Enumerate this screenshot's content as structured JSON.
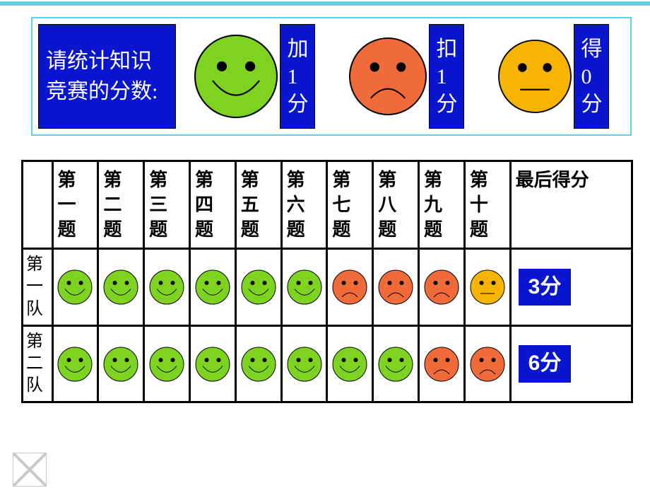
{
  "colors": {
    "blue": "#0915cf",
    "border_cyan": "#5fd0e8",
    "face_green": "#7ed321",
    "face_orange": "#f06a3a",
    "face_yellow": "#f4b400",
    "table_border": "#000000",
    "white": "#ffffff"
  },
  "header": {
    "title": "  请统计知识竞赛的分数:",
    "legend": [
      {
        "face": "happy",
        "label": "加\n1\n分",
        "size": 118,
        "color": "#7ed321"
      },
      {
        "face": "sad",
        "label": "扣\n1\n分",
        "size": 110,
        "color": "#f06a3a"
      },
      {
        "face": "neutral",
        "label": "得\n0\n分",
        "size": 104,
        "color": "#f4b400"
      }
    ]
  },
  "table": {
    "columns": [
      "第一题",
      "第二题",
      "第三题",
      "第四题",
      "第五题",
      "第六题",
      "第七题",
      "第八题",
      "第九题",
      "第十题"
    ],
    "score_header": "最后得分",
    "rows": [
      {
        "label": "第一队",
        "answers": [
          "happy",
          "happy",
          "happy",
          "happy",
          "happy",
          "happy",
          "sad",
          "sad",
          "sad",
          "neutral"
        ],
        "score_text": "3分"
      },
      {
        "label": "第二队",
        "answers": [
          "happy",
          "happy",
          "happy",
          "happy",
          "happy",
          "happy",
          "happy",
          "happy",
          "sad",
          "sad"
        ],
        "score_text": "6分"
      }
    ],
    "face_colors": {
      "happy": "#7ed321",
      "sad": "#f06a3a",
      "neutral": "#f4b400"
    },
    "cell_face_size": 50
  },
  "typography": {
    "title_fontsize": 30,
    "legend_fontsize": 30,
    "table_header_fontsize": 26,
    "score_fontsize": 30
  }
}
